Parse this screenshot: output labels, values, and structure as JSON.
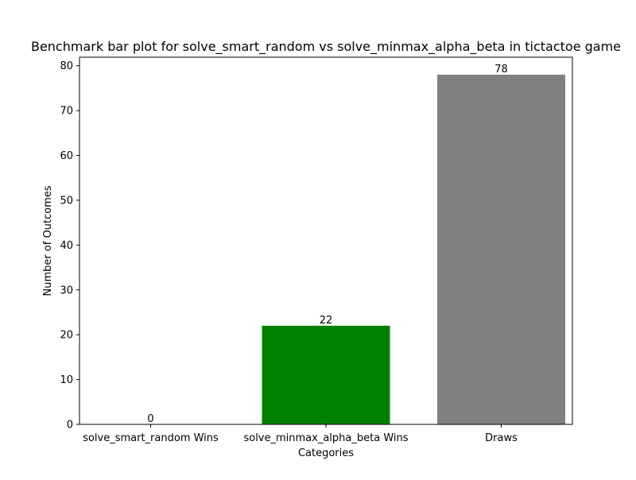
{
  "chart_data": {
    "type": "bar",
    "title": "Benchmark bar plot for solve_smart_random vs solve_minmax_alpha_beta in tictactoe game",
    "xlabel": "Categories",
    "ylabel": "Number of Outcomes",
    "categories": [
      "solve_smart_random Wins",
      "solve_minmax_alpha_beta Wins",
      "Draws"
    ],
    "values": [
      0,
      22,
      78
    ],
    "data_labels": [
      "0",
      "22",
      "78"
    ],
    "colors": [
      "#1f77b4",
      "#008000",
      "#808080"
    ],
    "ylim": [
      0,
      81.9
    ],
    "yticks": [
      0,
      10,
      20,
      30,
      40,
      50,
      60,
      70,
      80
    ],
    "grid": false,
    "legend": "none"
  }
}
